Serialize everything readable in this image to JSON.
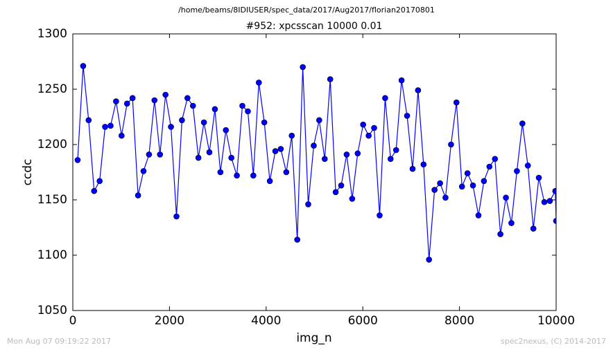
{
  "chart_data": {
    "type": "line",
    "suptitle": "/home/beams/8IDIUSER/spec_data/2017/Aug2017/florian20170801",
    "title": "#952: xpcsscan 10000 0.01",
    "xlabel": "img_n",
    "ylabel": "ccdc",
    "footer_left": "Mon Aug 07 09:19:22 2017",
    "footer_right": "spec2nexus, (C) 2014-2017",
    "xlim": [
      0,
      10000
    ],
    "xticks": [
      0,
      2000,
      4000,
      6000,
      8000,
      10000
    ],
    "ylim": [
      1050,
      1300
    ],
    "yticks": [
      1050,
      1100,
      1150,
      1200,
      1250,
      1300
    ],
    "x": [
      100,
      214,
      327,
      441,
      555,
      668,
      782,
      895,
      1009,
      1122,
      1236,
      1350,
      1463,
      1577,
      1690,
      1804,
      1918,
      2031,
      2145,
      2258,
      2372,
      2486,
      2599,
      2713,
      2826,
      2940,
      3054,
      3167,
      3281,
      3394,
      3508,
      3622,
      3735,
      3849,
      3962,
      4076,
      4190,
      4303,
      4417,
      4530,
      4644,
      4758,
      4871,
      4985,
      5098,
      5212,
      5326,
      5439,
      5553,
      5666,
      5780,
      5894,
      6007,
      6121,
      6234,
      6348,
      6462,
      6575,
      6689,
      6802,
      6916,
      7030,
      7143,
      7257,
      7370,
      7484,
      7598,
      7711,
      7825,
      7938,
      8052,
      8166,
      8279,
      8393,
      8506,
      8620,
      8734,
      8847,
      8961,
      9074,
      9188,
      9302,
      9415,
      9529,
      9642,
      9756,
      9870,
      9983,
      10000
    ],
    "series": [
      {
        "name": "ccdc",
        "color": "#0000ff",
        "values": [
          1186,
          1271,
          1222,
          1158,
          1167,
          1216,
          1217,
          1239,
          1208,
          1237,
          1242,
          1154,
          1176,
          1191,
          1240,
          1191,
          1245,
          1216,
          1135,
          1222,
          1242,
          1235,
          1188,
          1220,
          1193,
          1232,
          1175,
          1213,
          1188,
          1172,
          1235,
          1230,
          1172,
          1256,
          1220,
          1167,
          1194,
          1196,
          1175,
          1208,
          1114,
          1270,
          1146,
          1199,
          1222,
          1187,
          1259,
          1157,
          1163,
          1191,
          1151,
          1192,
          1218,
          1208,
          1215,
          1136,
          1242,
          1187,
          1195,
          1258,
          1226,
          1178,
          1249,
          1182,
          1096,
          1159,
          1165,
          1152,
          1200,
          1238,
          1162,
          1174,
          1163,
          1136,
          1167,
          1180,
          1187,
          1119,
          1152,
          1129,
          1176,
          1219,
          1181,
          1124,
          1170,
          1148,
          1149,
          1158,
          1131
        ]
      }
    ]
  }
}
